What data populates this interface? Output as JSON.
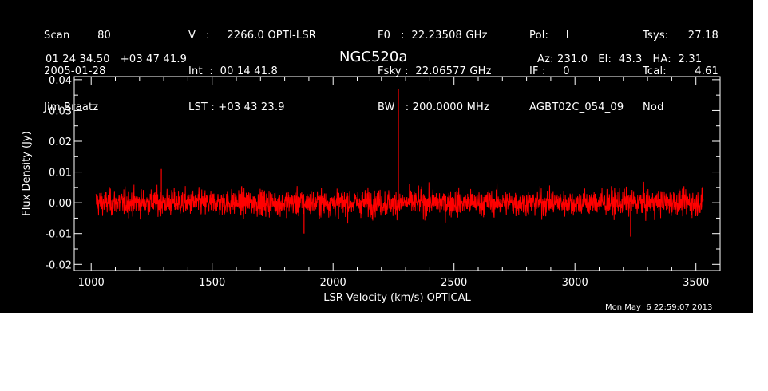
{
  "header": {
    "col1": [
      "Scan        80",
      "2005-01-28",
      "Jim Braatz"
    ],
    "col2": [
      "V   :     2266.0 OPTI-LSR",
      "Int  :  00 14 41.8",
      "LST : +03 43 23.9"
    ],
    "col3": [
      "F0   :  22.23508 GHz",
      "Fsky :  22.06577 GHz",
      "BW   : 200.0000 MHz"
    ],
    "col4": [
      "Pol:     I",
      "IF :     0",
      "AGBT02C_054_09"
    ],
    "col5a": [
      "Tsys:",
      "Tcal:",
      "Nod"
    ],
    "col5b": [
      "27.18",
      "4.61",
      ""
    ],
    "coords": "01 24 34.50   +03 47 41.9",
    "source": "NGC520a",
    "azel": "Az: 231.0   El:  43.3   HA:  2.31",
    "timestamp": "Mon May  6 22:59:07 2013"
  },
  "colors": {
    "background": "#000000",
    "axes": "#ffffff",
    "spectrum": "#ff0000"
  },
  "chart_data": {
    "type": "line",
    "title": "NGC520a",
    "xlabel": "LSR Velocity (km/s) OPTICAL",
    "ylabel": "Flux Density (Jy)",
    "xlim": [
      930,
      3600
    ],
    "ylim": [
      -0.022,
      0.041
    ],
    "xticks": [
      1000,
      1500,
      2000,
      2500,
      3000,
      3500
    ],
    "xtick_labels": [
      "1000",
      "1500",
      "2000",
      "2500",
      "3000",
      "3500"
    ],
    "yticks": [
      -0.02,
      -0.01,
      0.0,
      0.01,
      0.02,
      0.03,
      0.04
    ],
    "ytick_labels": [
      "-0.02",
      "-0.01",
      "0.00",
      "0.01",
      "0.02",
      "0.03",
      "0.04"
    ],
    "grid": false,
    "legend": "none",
    "series": [
      {
        "x_range": [
          1020,
          3530
        ],
        "baseline": 0.0,
        "noise_rms": 0.003,
        "noise_envelope": [
          -0.008,
          0.008
        ],
        "features": [
          {
            "x": 2270,
            "y": 0.037
          },
          {
            "x": 1290,
            "y": 0.011
          },
          {
            "x": 1880,
            "y": -0.01
          },
          {
            "x": 3230,
            "y": -0.011
          }
        ]
      }
    ]
  }
}
